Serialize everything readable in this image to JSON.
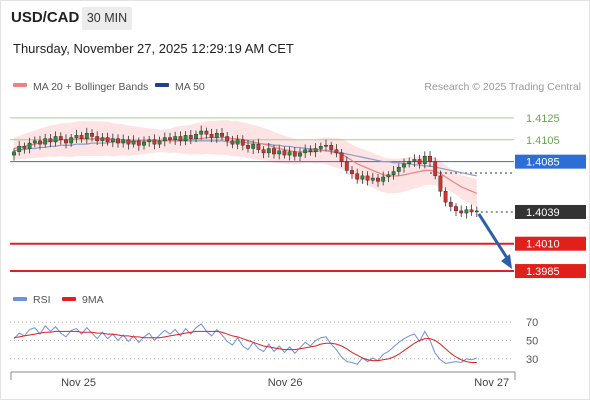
{
  "header": {
    "symbol": "USD/CAD",
    "timeframe": "30 MIN",
    "timestamp": "Thursday, November 27, 2025 12:29:19 AM CET"
  },
  "legend": {
    "ma20_label": "MA 20 + Bollinger Bands",
    "ma50_label": "MA 50",
    "credit": "Research © 2025 Trading Central",
    "rsi_label": "RSI",
    "rsi_ma_label": "9MA"
  },
  "colors": {
    "up_candle": "#2e8b3e",
    "down_candle": "#d0342c",
    "ma20": "#f08080",
    "bollinger_fill": "#fde0e0",
    "ma50": "#8b9bc8",
    "resistance_line": "#9fd18c",
    "pivot_line": "#2d6ed6",
    "support_line": "#e0201b",
    "rsi_line": "#6f8fe0",
    "rsi_ma_line": "#e0201b",
    "arrow": "#2c5fa8"
  },
  "chart_data": {
    "type": "candlestick",
    "price_axis": {
      "range": [
        1.3975,
        1.4145
      ]
    },
    "levels": [
      {
        "label": "1.4125",
        "value": 1.4125,
        "kind": "resistance"
      },
      {
        "label": "1.4105",
        "value": 1.4105,
        "kind": "resistance"
      },
      {
        "label": "1.4085",
        "value": 1.4085,
        "kind": "pivot"
      },
      {
        "label": "1.4039",
        "value": 1.4039,
        "kind": "last-price"
      },
      {
        "label": "1.4010",
        "value": 1.401,
        "kind": "support"
      },
      {
        "label": "1.3985",
        "value": 1.3985,
        "kind": "support"
      }
    ],
    "forecast_arrow": {
      "from": 1.4039,
      "to": 1.3985
    },
    "x_ticks": [
      {
        "label": "Nov 25",
        "index": 15
      },
      {
        "label": "Nov 26",
        "index": 63
      },
      {
        "label": "Nov 27",
        "index": 111
      }
    ],
    "candles_count": 90,
    "close": [
      1.4094,
      1.4099,
      1.4097,
      1.4102,
      1.4104,
      1.4101,
      1.4106,
      1.4103,
      1.4108,
      1.4105,
      1.4102,
      1.4107,
      1.4109,
      1.4106,
      1.4111,
      1.4108,
      1.4104,
      1.4107,
      1.4103,
      1.4106,
      1.4102,
      1.4105,
      1.4101,
      1.4104,
      1.41,
      1.4103,
      1.4105,
      1.4101,
      1.4104,
      1.4107,
      1.4105,
      1.4108,
      1.4104,
      1.4109,
      1.4106,
      1.411,
      1.4113,
      1.411,
      1.4107,
      1.4111,
      1.4108,
      1.4104,
      1.4101,
      1.4105,
      1.41,
      1.4097,
      1.4101,
      1.4096,
      1.4093,
      1.4097,
      1.4092,
      1.4095,
      1.4091,
      1.4094,
      1.409,
      1.4093,
      1.4096,
      1.4094,
      1.4097,
      1.4099,
      1.41,
      1.4096,
      1.4093,
      1.4085,
      1.4077,
      1.4074,
      1.4069,
      1.4072,
      1.4068,
      1.407,
      1.4067,
      1.4071,
      1.4073,
      1.4076,
      1.408,
      1.4083,
      1.4085,
      1.4087,
      1.4083,
      1.409,
      1.4085,
      1.4072,
      1.4058,
      1.4048,
      1.4044,
      1.404,
      1.4038,
      1.4041,
      1.4039,
      1.404
    ],
    "ma20": [
      1.4097,
      1.4098,
      1.4099,
      1.41,
      1.4101,
      1.4102,
      1.4103,
      1.4104,
      1.4104,
      1.4105,
      1.4105,
      1.4105,
      1.4106,
      1.4106,
      1.4106,
      1.4106,
      1.4106,
      1.4106,
      1.4106,
      1.4105,
      1.4105,
      1.4105,
      1.4104,
      1.4104,
      1.4104,
      1.4104,
      1.4104,
      1.4104,
      1.4104,
      1.4104,
      1.4104,
      1.4105,
      1.4105,
      1.4105,
      1.4105,
      1.4106,
      1.4106,
      1.4107,
      1.4107,
      1.4107,
      1.4107,
      1.4107,
      1.4106,
      1.4106,
      1.4105,
      1.4104,
      1.4103,
      1.4102,
      1.4101,
      1.41,
      1.4098,
      1.4097,
      1.4096,
      1.4095,
      1.4094,
      1.4094,
      1.4094,
      1.4094,
      1.4094,
      1.4095,
      1.4095,
      1.4094,
      1.4093,
      1.4092,
      1.4089,
      1.4086,
      1.4083,
      1.4081,
      1.4079,
      1.4077,
      1.4075,
      1.4073,
      1.4072,
      1.4072,
      1.4072,
      1.4073,
      1.4074,
      1.4075,
      1.4076,
      1.4077,
      1.4077,
      1.4076,
      1.4074,
      1.4071,
      1.4068,
      1.4065,
      1.4062,
      1.406,
      1.4058,
      1.4056
    ],
    "ma50": [
      1.4095,
      1.4096,
      1.4096,
      1.4097,
      1.4097,
      1.4098,
      1.4098,
      1.4099,
      1.4099,
      1.41,
      1.41,
      1.41,
      1.4101,
      1.4101,
      1.4101,
      1.4102,
      1.4102,
      1.4102,
      1.4102,
      1.4103,
      1.4103,
      1.4103,
      1.4103,
      1.4103,
      1.4104,
      1.4104,
      1.4104,
      1.4104,
      1.4104,
      1.4104,
      1.4104,
      1.4104,
      1.4104,
      1.4104,
      1.4104,
      1.4104,
      1.4104,
      1.4104,
      1.4104,
      1.4104,
      1.4104,
      1.4103,
      1.4103,
      1.4103,
      1.4103,
      1.4102,
      1.4102,
      1.4102,
      1.4101,
      1.4101,
      1.41,
      1.41,
      1.4099,
      1.4099,
      1.4098,
      1.4098,
      1.4097,
      1.4097,
      1.4096,
      1.4096,
      1.4095,
      1.4095,
      1.4094,
      1.4093,
      1.4092,
      1.4091,
      1.409,
      1.4089,
      1.4088,
      1.4087,
      1.4086,
      1.4085,
      1.4085,
      1.4084,
      1.4084,
      1.4083,
      1.4083,
      1.4082,
      1.4082,
      1.4081,
      1.4081,
      1.408,
      1.4079,
      1.4078,
      1.4077,
      1.4076,
      1.4075,
      1.4074,
      1.4073,
      1.4072
    ],
    "bb_width": 0.001,
    "rsi_axis": {
      "range": [
        20,
        80
      ],
      "ticks": [
        70,
        50,
        30
      ]
    },
    "rsi": [
      52,
      58,
      55,
      62,
      64,
      57,
      66,
      60,
      65,
      58,
      54,
      61,
      63,
      57,
      64,
      58,
      52,
      59,
      52,
      57,
      50,
      56,
      49,
      55,
      48,
      54,
      58,
      50,
      56,
      61,
      57,
      62,
      55,
      63,
      57,
      64,
      68,
      60,
      55,
      62,
      56,
      49,
      45,
      53,
      44,
      40,
      48,
      41,
      38,
      46,
      38,
      44,
      37,
      43,
      36,
      42,
      48,
      44,
      50,
      53,
      54,
      46,
      40,
      32,
      27,
      26,
      24,
      31,
      27,
      31,
      28,
      35,
      38,
      43,
      48,
      52,
      55,
      57,
      49,
      60,
      50,
      36,
      29,
      25,
      26,
      27,
      26,
      30,
      29,
      31
    ],
    "rsi_ma": [
      53,
      54,
      55,
      56,
      57,
      58,
      59,
      59,
      60,
      60,
      60,
      60,
      60,
      59,
      59,
      59,
      58,
      58,
      57,
      57,
      56,
      55,
      55,
      54,
      54,
      53,
      53,
      53,
      53,
      54,
      55,
      56,
      57,
      58,
      59,
      60,
      60,
      60,
      60,
      60,
      59,
      57,
      55,
      54,
      52,
      50,
      48,
      46,
      44,
      43,
      42,
      41,
      40,
      40,
      40,
      41,
      42,
      43,
      44,
      46,
      47,
      47,
      46,
      44,
      41,
      37,
      34,
      31,
      29,
      28,
      28,
      29,
      30,
      32,
      35,
      39,
      43,
      47,
      50,
      52,
      52,
      50,
      46,
      41,
      36,
      32,
      29,
      27,
      26,
      26
    ]
  }
}
